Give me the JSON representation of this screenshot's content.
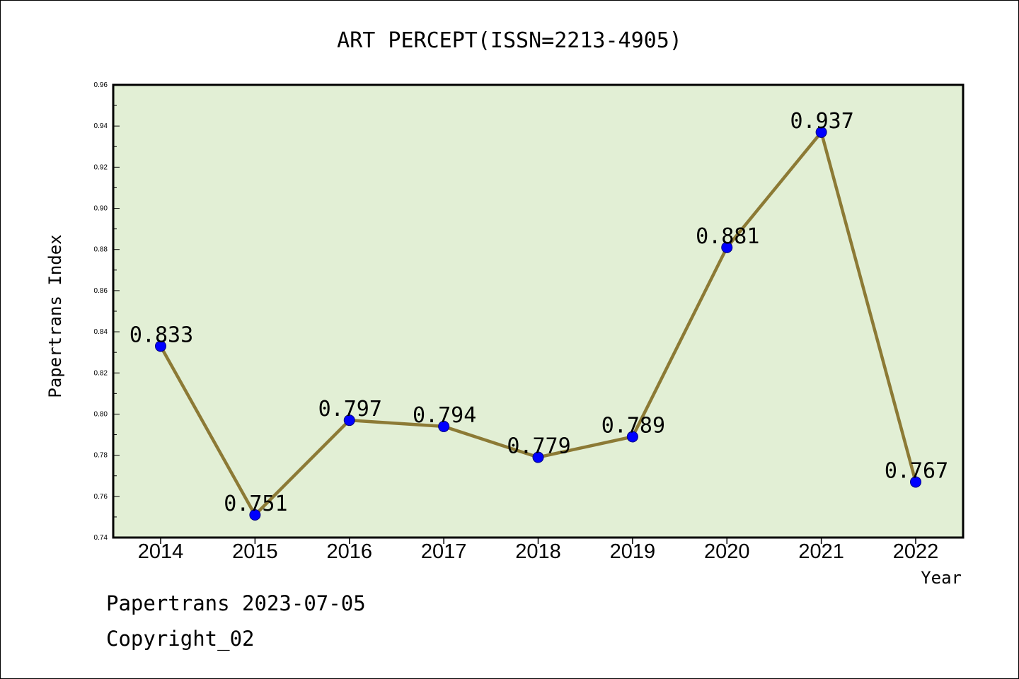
{
  "footer": {
    "line1": "Papertrans 2023-07-05",
    "line2": "Copyright_02"
  },
  "colors": {
    "plot_background": "#e2efd5",
    "line": "#8c7a35",
    "marker_fill": "#0000ff",
    "marker_edge": "#000080",
    "axes": "#000000"
  },
  "chart_data": {
    "type": "line",
    "title": "ART PERCEPT(ISSN=2213-4905)",
    "xlabel": "Year",
    "ylabel": "Papertrans Index",
    "categories": [
      "2014",
      "2015",
      "2016",
      "2017",
      "2018",
      "2019",
      "2020",
      "2021",
      "2022"
    ],
    "series": [
      {
        "values": [
          0.833,
          0.751,
          0.797,
          0.794,
          0.779,
          0.789,
          0.881,
          0.937,
          0.767
        ],
        "labels": [
          "0.833",
          "0.751",
          "0.797",
          "0.794",
          "0.779",
          "0.789",
          "0.881",
          "0.937",
          "0.767"
        ]
      }
    ],
    "ylim": [
      0.74,
      0.96
    ],
    "yticks": [
      "0.74",
      "0.76",
      "0.78",
      "0.80",
      "0.82",
      "0.84",
      "0.86",
      "0.88",
      "0.90",
      "0.92",
      "0.94",
      "0.96"
    ],
    "grid": false,
    "legend": "none"
  }
}
